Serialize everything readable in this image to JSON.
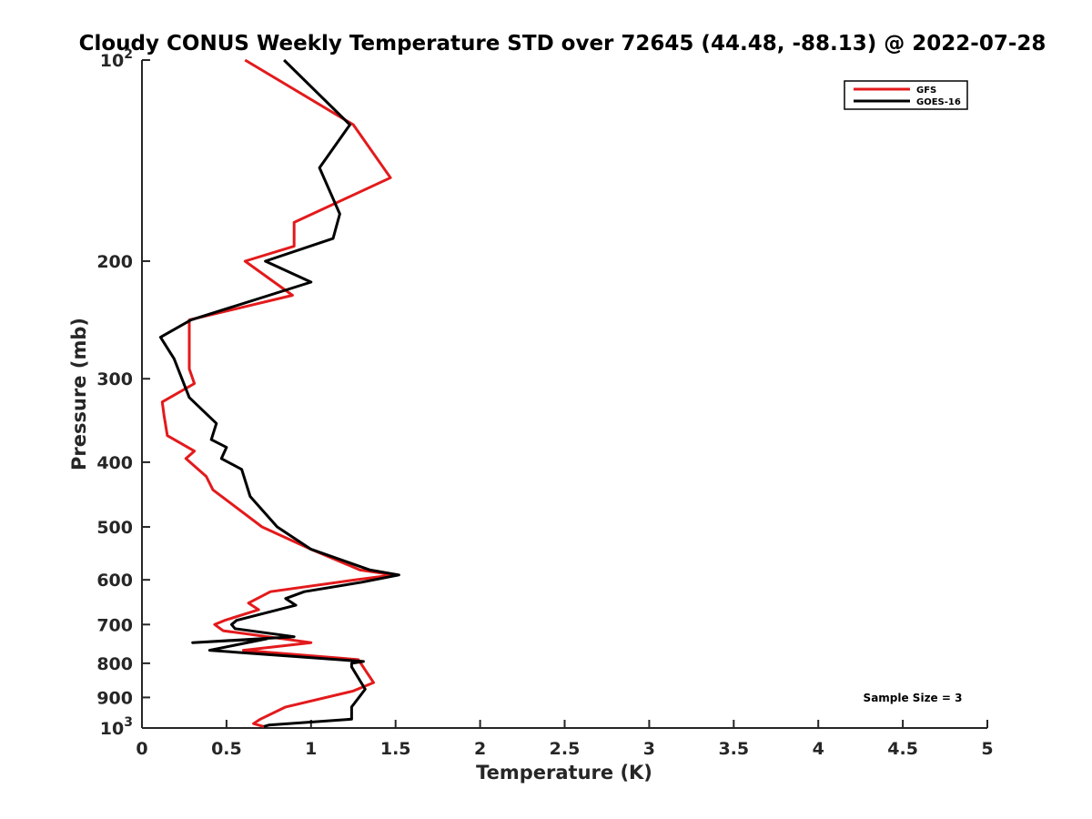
{
  "chart_data": {
    "type": "line",
    "title": "Cloudy CONUS Weekly Temperature STD over 72645 (44.48, -88.13) @ 2022-07-28",
    "xlabel": "Temperature (K)",
    "ylabel": "Pressure (mb)",
    "xlim": [
      0,
      5
    ],
    "ylim": [
      100,
      1000
    ],
    "y_scale": "log",
    "y_reversed": true,
    "x_ticks": [
      0,
      0.5,
      1,
      1.5,
      2,
      2.5,
      3,
      3.5,
      4,
      4.5,
      5
    ],
    "x_tick_labels": [
      "0",
      "0.5",
      "1",
      "1.5",
      "2",
      "2.5",
      "3",
      "3.5",
      "4",
      "4.5",
      "5"
    ],
    "y_ticks": [
      100,
      200,
      300,
      400,
      500,
      600,
      700,
      800,
      900,
      1000
    ],
    "y_tick_labels": [
      {
        "base": "10",
        "exp": "2"
      },
      {
        "base": "200",
        "exp": ""
      },
      {
        "base": "300",
        "exp": ""
      },
      {
        "base": "400",
        "exp": ""
      },
      {
        "base": "500",
        "exp": ""
      },
      {
        "base": "600",
        "exp": ""
      },
      {
        "base": "700",
        "exp": ""
      },
      {
        "base": "800",
        "exp": ""
      },
      {
        "base": "900",
        "exp": ""
      },
      {
        "base": "10",
        "exp": "3"
      }
    ],
    "grid": false,
    "legend_position": "top-right",
    "series": [
      {
        "name": "GFS",
        "color": "#e31a1c",
        "points": [
          [
            0.61,
            100
          ],
          [
            1.25,
            125
          ],
          [
            1.47,
            150
          ],
          [
            0.9,
            175
          ],
          [
            0.9,
            190
          ],
          [
            0.61,
            200
          ],
          [
            0.89,
            225
          ],
          [
            0.28,
            245
          ],
          [
            0.28,
            290
          ],
          [
            0.31,
            305
          ],
          [
            0.12,
            325
          ],
          [
            0.13,
            340
          ],
          [
            0.15,
            365
          ],
          [
            0.31,
            385
          ],
          [
            0.26,
            395
          ],
          [
            0.38,
            420
          ],
          [
            0.42,
            440
          ],
          [
            0.71,
            500
          ],
          [
            1.0,
            540
          ],
          [
            1.29,
            580
          ],
          [
            1.49,
            590
          ],
          [
            1.26,
            600
          ],
          [
            0.76,
            625
          ],
          [
            0.63,
            650
          ],
          [
            0.69,
            665
          ],
          [
            0.49,
            690
          ],
          [
            0.43,
            700
          ],
          [
            0.48,
            715
          ],
          [
            1.0,
            745
          ],
          [
            0.6,
            765
          ],
          [
            1.28,
            790
          ],
          [
            1.37,
            855
          ],
          [
            1.25,
            880
          ],
          [
            0.85,
            930
          ],
          [
            0.7,
            970
          ],
          [
            0.66,
            985
          ],
          [
            0.72,
            995
          ]
        ]
      },
      {
        "name": "GOES-16",
        "color": "#000000",
        "points": [
          [
            0.84,
            100
          ],
          [
            1.23,
            125
          ],
          [
            1.05,
            145
          ],
          [
            1.17,
            170
          ],
          [
            1.13,
            185
          ],
          [
            0.73,
            200
          ],
          [
            1.0,
            215
          ],
          [
            0.29,
            245
          ],
          [
            0.11,
            260
          ],
          [
            0.19,
            280
          ],
          [
            0.28,
            320
          ],
          [
            0.44,
            350
          ],
          [
            0.41,
            370
          ],
          [
            0.5,
            380
          ],
          [
            0.47,
            395
          ],
          [
            0.59,
            410
          ],
          [
            0.64,
            450
          ],
          [
            0.8,
            500
          ],
          [
            1.0,
            540
          ],
          [
            1.35,
            580
          ],
          [
            1.52,
            590
          ],
          [
            1.3,
            605
          ],
          [
            0.96,
            625
          ],
          [
            0.85,
            640
          ],
          [
            0.91,
            655
          ],
          [
            0.56,
            690
          ],
          [
            0.53,
            700
          ],
          [
            0.55,
            710
          ],
          [
            0.9,
            730
          ],
          [
            0.3,
            745
          ],
          [
            0.74,
            735
          ],
          [
            0.4,
            765
          ],
          [
            1.31,
            795
          ],
          [
            1.24,
            800
          ],
          [
            1.24,
            810
          ],
          [
            1.32,
            875
          ],
          [
            1.24,
            930
          ],
          [
            1.24,
            970
          ],
          [
            0.75,
            990
          ],
          [
            0.72,
            995
          ]
        ]
      }
    ],
    "annotations": [
      {
        "text": "Sample Size = 3",
        "position": "bottom-right"
      }
    ]
  }
}
